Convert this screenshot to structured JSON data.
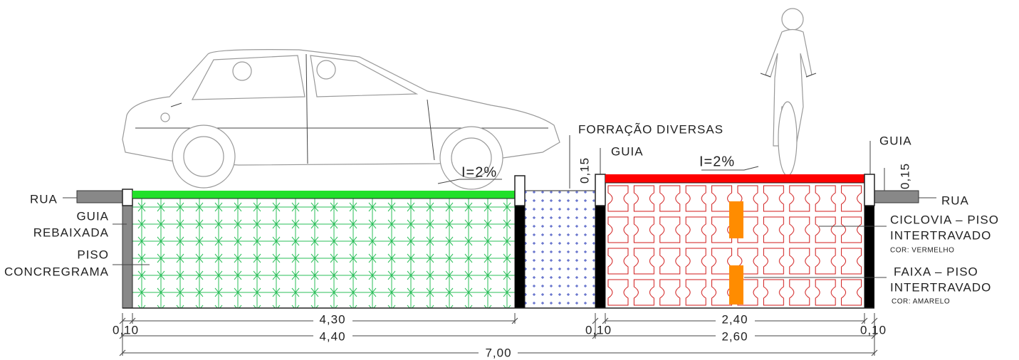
{
  "left": {
    "road": "RUA",
    "curb": [
      "GUIA",
      "REBAIXADA"
    ],
    "paving": [
      "PISO",
      "CONCREGRAMA"
    ],
    "slope": "I=2%"
  },
  "middle": {
    "planting": "FORRAÇÃO DIVERSAS",
    "height": "0,15",
    "curb": "GUIA"
  },
  "right": {
    "slope": "I=2%",
    "curb": "GUIA",
    "height": "0,15",
    "road": "RUA",
    "bike_lane": [
      "CICLOVIA – PISO",
      "INTERTRAVADO",
      "COR: VERMELHO"
    ],
    "stripe": [
      "FAIXA – PISO",
      "INTERTRAVADO",
      "COR: AMARELO"
    ]
  },
  "dimensions": {
    "left_curb": "0,10",
    "parking": "4,30",
    "parking_total": "4,40",
    "middle_curb": "0,10",
    "bike": "2,40",
    "bike_total": "2,60",
    "right_curb": "0,10",
    "total": "7,00"
  }
}
